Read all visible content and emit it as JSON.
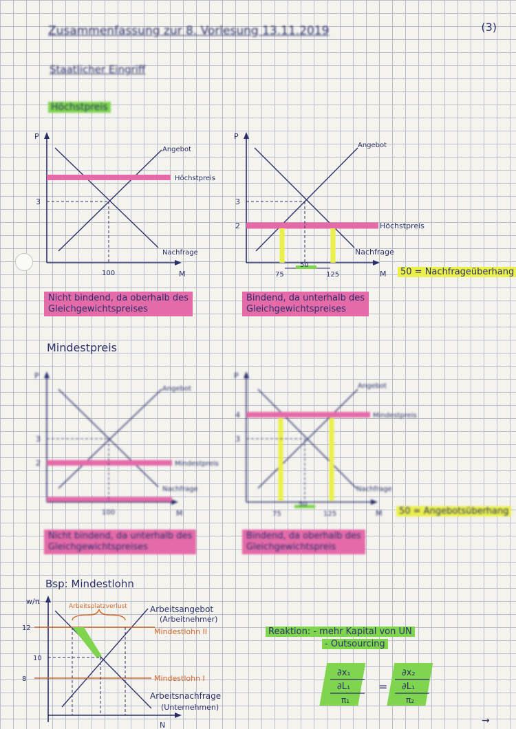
{
  "header": {
    "title": "Zusammenfassung zur 8. Vorlesung 13.11.2019",
    "page_number": "(3)",
    "subtitle": "Staatlicher Eingriff"
  },
  "hoechstpreis": {
    "heading": "Höchstpreis",
    "graph1": {
      "axis_p": "P",
      "axis_m": "M",
      "supply": "Angebot",
      "demand": "Nachfrage",
      "price_line": "Höchstpreis",
      "eq_price": "3",
      "eq_qty": "100"
    },
    "graph2": {
      "axis_p": "P",
      "axis_m": "M",
      "supply": "Angebot",
      "demand": "Nachfrage",
      "price_line": "Höchstpreis",
      "eq_price": "3",
      "cap_price": "2",
      "q_low": "75",
      "q_gap": "50",
      "q_high": "125"
    },
    "surplus_note": "50 = Nachfrageüberhang",
    "caption_left": [
      "Nicht bindend, da oberhalb des",
      "Gleichgewichtspreises"
    ],
    "caption_right": [
      "Bindend, da unterhalb des",
      "Gleichgewichtspreises"
    ]
  },
  "mindestpreis": {
    "heading": "Mindestpreis",
    "graph1": {
      "axis_p": "P",
      "axis_m": "M",
      "supply": "Angebot",
      "demand": "Nachfrage",
      "price_line": "Mindestpreis",
      "eq_price": "3",
      "floor_price": "2",
      "eq_qty": "100"
    },
    "graph2": {
      "axis_p": "P",
      "axis_m": "M",
      "supply": "Angebot",
      "demand": "Nachfrage",
      "price_line": "Mindestpreis",
      "floor_price": "4",
      "eq_price": "3",
      "q_low": "75",
      "q_gap": "50",
      "q_high": "125"
    },
    "surplus_note": "50 = Angebotsüberhang",
    "caption_left": [
      "Nicht bindend, da unterhalb des",
      "Gleichgewichtspreises"
    ],
    "caption_right": [
      "Bindend, da oberhalb des",
      "Gleichgewichtspreis"
    ]
  },
  "mindestlohn": {
    "heading": "Bsp: Mindestlohn",
    "axis_w": "w/π",
    "axis_n": "N",
    "job_loss": "Arbeitsplatzverlust",
    "supply": [
      "Arbeitsangebot",
      "(Arbeitnehmer)"
    ],
    "demand": [
      "Arbeitsnachfrage",
      "(Unternehmen)"
    ],
    "wage_ii": "Mindestlohn II",
    "wage_i": "Mindestlohn I",
    "val_12": "12",
    "val_10": "10",
    "val_8": "8",
    "reaction": [
      "Reaktion: - mehr Kapital von UN",
      "- Outsourcing"
    ],
    "formula": {
      "lhs_num": "∂x₁",
      "lhs_den": "∂L₁",
      "lhs_frac": "π₁",
      "eq": "=",
      "rhs_num": "∂x₂",
      "rhs_den": "∂L₁",
      "rhs_frac": "π₂"
    },
    "corner": "→"
  },
  "colors": {
    "ink": "#2a2f6b",
    "pink": "#e46aa8",
    "green": "#7fd64e",
    "yellow": "#eaf04a",
    "orange": "#d0662a",
    "grid": "#b9bcc9"
  }
}
